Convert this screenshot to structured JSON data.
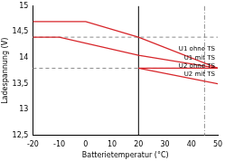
{
  "chart_data": {
    "type": "line",
    "x_label": "Batterietemperatur (°C)",
    "y_label": "Ladespannung (V)",
    "xlim": [
      -20,
      50
    ],
    "xticks": [
      -20,
      -10,
      0,
      10,
      20,
      30,
      40,
      50
    ],
    "ylim": [
      12.5,
      15
    ],
    "yticks": [
      {
        "value": 12.5,
        "label": "12,5"
      },
      13,
      {
        "value": 13.5,
        "label": "13,5"
      },
      14,
      {
        "value": 14.5,
        "label": "14,5"
      },
      15
    ],
    "grid": false,
    "series": [
      {
        "name": "U1 ohne TS",
        "color": "#d7262b",
        "x": [
          -20,
          0,
          20,
          50
        ],
        "values": [
          14.7,
          14.7,
          14.4,
          13.8
        ]
      },
      {
        "name": "U1 mit TS",
        "color": "#d7262b",
        "x": [
          -20,
          -10,
          20,
          50
        ],
        "values": [
          14.4,
          14.4,
          14.05,
          13.8
        ]
      },
      {
        "name": "U2 ohne TS",
        "color": "#d7262b",
        "x": [
          20,
          50
        ],
        "values": [
          13.8,
          13.8
        ]
      },
      {
        "name": "U2 mit TS",
        "color": "#d7262b",
        "x": [
          20,
          50
        ],
        "values": [
          13.8,
          13.5
        ]
      }
    ],
    "reference_lines": [
      {
        "y": 14.4,
        "color": "#8c8c8c",
        "line_style": "dashed"
      },
      {
        "y": 13.8,
        "color": "#8c8c8c",
        "line_style": "dashed"
      },
      {
        "x": 20,
        "color": "#000000",
        "line_style": "solid"
      },
      {
        "x": 45,
        "color": "#8c8c8c",
        "line_style": "dashdot"
      }
    ]
  }
}
